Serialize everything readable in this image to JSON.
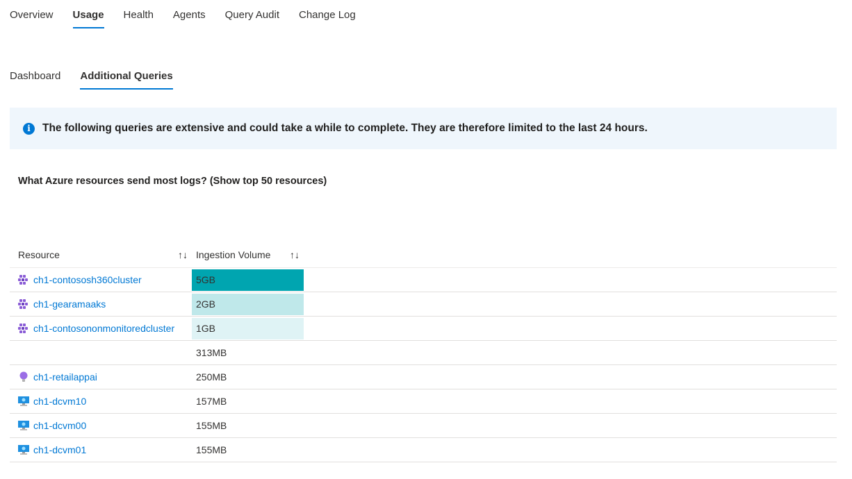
{
  "tabs": [
    "Overview",
    "Usage",
    "Health",
    "Agents",
    "Query Audit",
    "Change Log"
  ],
  "active_tab": "Usage",
  "subtabs": [
    "Dashboard",
    "Additional Queries"
  ],
  "info": {
    "icon": "info-icon",
    "text": "The following queries are extensive and could take a while to complete. They are therefore limited to the last 24 hours."
  },
  "question": "What Azure resources send most logs? (Show top 50 resources)",
  "table": {
    "headers": [
      "Resource",
      "Ingestion Volume"
    ],
    "sort_icon": "↑↓",
    "rows": [
      {
        "resource": "ch1-contososh360cluster",
        "icon": "kubernetes-icon",
        "volume": "5GB",
        "bar": "#00a5b0"
      },
      {
        "resource": "ch1-gearamaaks",
        "icon": "kubernetes-icon",
        "volume": "2GB",
        "bar": "#bfe8ea"
      },
      {
        "resource": "ch1-contosononmonitoredcluster",
        "icon": "kubernetes-icon",
        "volume": "1GB",
        "bar": "#dff3f5"
      },
      {
        "resource": "",
        "icon": "",
        "volume": "313MB",
        "bar": ""
      },
      {
        "resource": "ch1-retailappai",
        "icon": "app-insights-icon",
        "volume": "250MB",
        "bar": ""
      },
      {
        "resource": "ch1-dcvm10",
        "icon": "virtual-machine-icon",
        "volume": "157MB",
        "bar": ""
      },
      {
        "resource": "ch1-dcvm00",
        "icon": "virtual-machine-icon",
        "volume": "155MB",
        "bar": ""
      },
      {
        "resource": "ch1-dcvm01",
        "icon": "virtual-machine-icon",
        "volume": "155MB",
        "bar": ""
      }
    ]
  }
}
